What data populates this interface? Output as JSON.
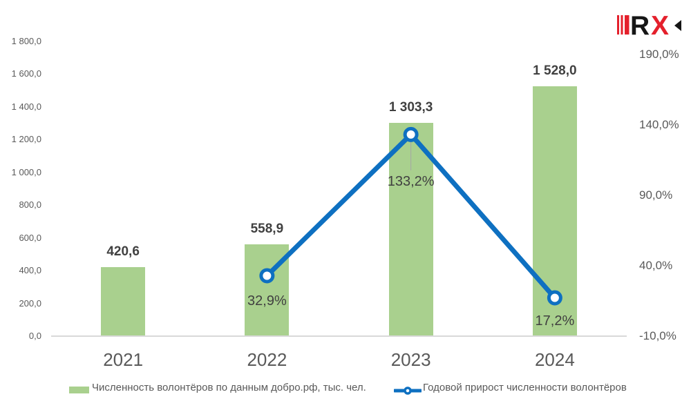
{
  "logo": {
    "letter_r": "R",
    "letter_x": "X"
  },
  "colors": {
    "bar_green": "#a9d08e",
    "line_blue": "#0e70c1",
    "value_label": "#404040",
    "axis_text": "#595959",
    "axis_line": "#d9d9d9",
    "leader_line": "#a6a6a6",
    "logo_red": "#e4202c",
    "logo_black": "#161616"
  },
  "chart_data": {
    "type": "combo-bar-line",
    "categories": [
      "2021",
      "2022",
      "2023",
      "2024"
    ],
    "series": [
      {
        "name": "Численность волонтёров по данным добро.рф, тыс. чел.",
        "type": "bar",
        "values": [
          420.6,
          558.9,
          1303.3,
          1528.0
        ],
        "labels": [
          "420,6",
          "558,9",
          "1 303,3",
          "1 528,0"
        ],
        "color": "#a9d08e",
        "axis": "left"
      },
      {
        "name": "Годовой прирост численности волонтёров",
        "type": "line",
        "x_indices": [
          1,
          2,
          3
        ],
        "values": [
          32.9,
          133.2,
          17.2
        ],
        "labels": [
          "32,9%",
          "133,2%",
          "17,2%"
        ],
        "color": "#0e70c1",
        "axis": "right"
      }
    ],
    "left_axis": {
      "min": 0,
      "max": 1800,
      "ticks": [
        {
          "v": 0,
          "label": "0,0"
        },
        {
          "v": 200,
          "label": "200,0"
        },
        {
          "v": 400,
          "label": "400,0"
        },
        {
          "v": 600,
          "label": "600,0"
        },
        {
          "v": 800,
          "label": "800,0"
        },
        {
          "v": 1000,
          "label": "1 000,0"
        },
        {
          "v": 1200,
          "label": "1 200,0"
        },
        {
          "v": 1400,
          "label": "1 400,0"
        },
        {
          "v": 1600,
          "label": "1 600,0"
        },
        {
          "v": 1800,
          "label": "1 800,0"
        }
      ]
    },
    "right_axis": {
      "min": -10,
      "max": 190,
      "ticks": [
        {
          "v": -10,
          "label": "-10,0%"
        },
        {
          "v": 40,
          "label": "40,0%"
        },
        {
          "v": 90,
          "label": "90,0%"
        },
        {
          "v": 140,
          "label": "140,0%"
        },
        {
          "v": 190,
          "label": "190,0%"
        }
      ]
    },
    "grid": false,
    "legend_position": "bottom"
  }
}
